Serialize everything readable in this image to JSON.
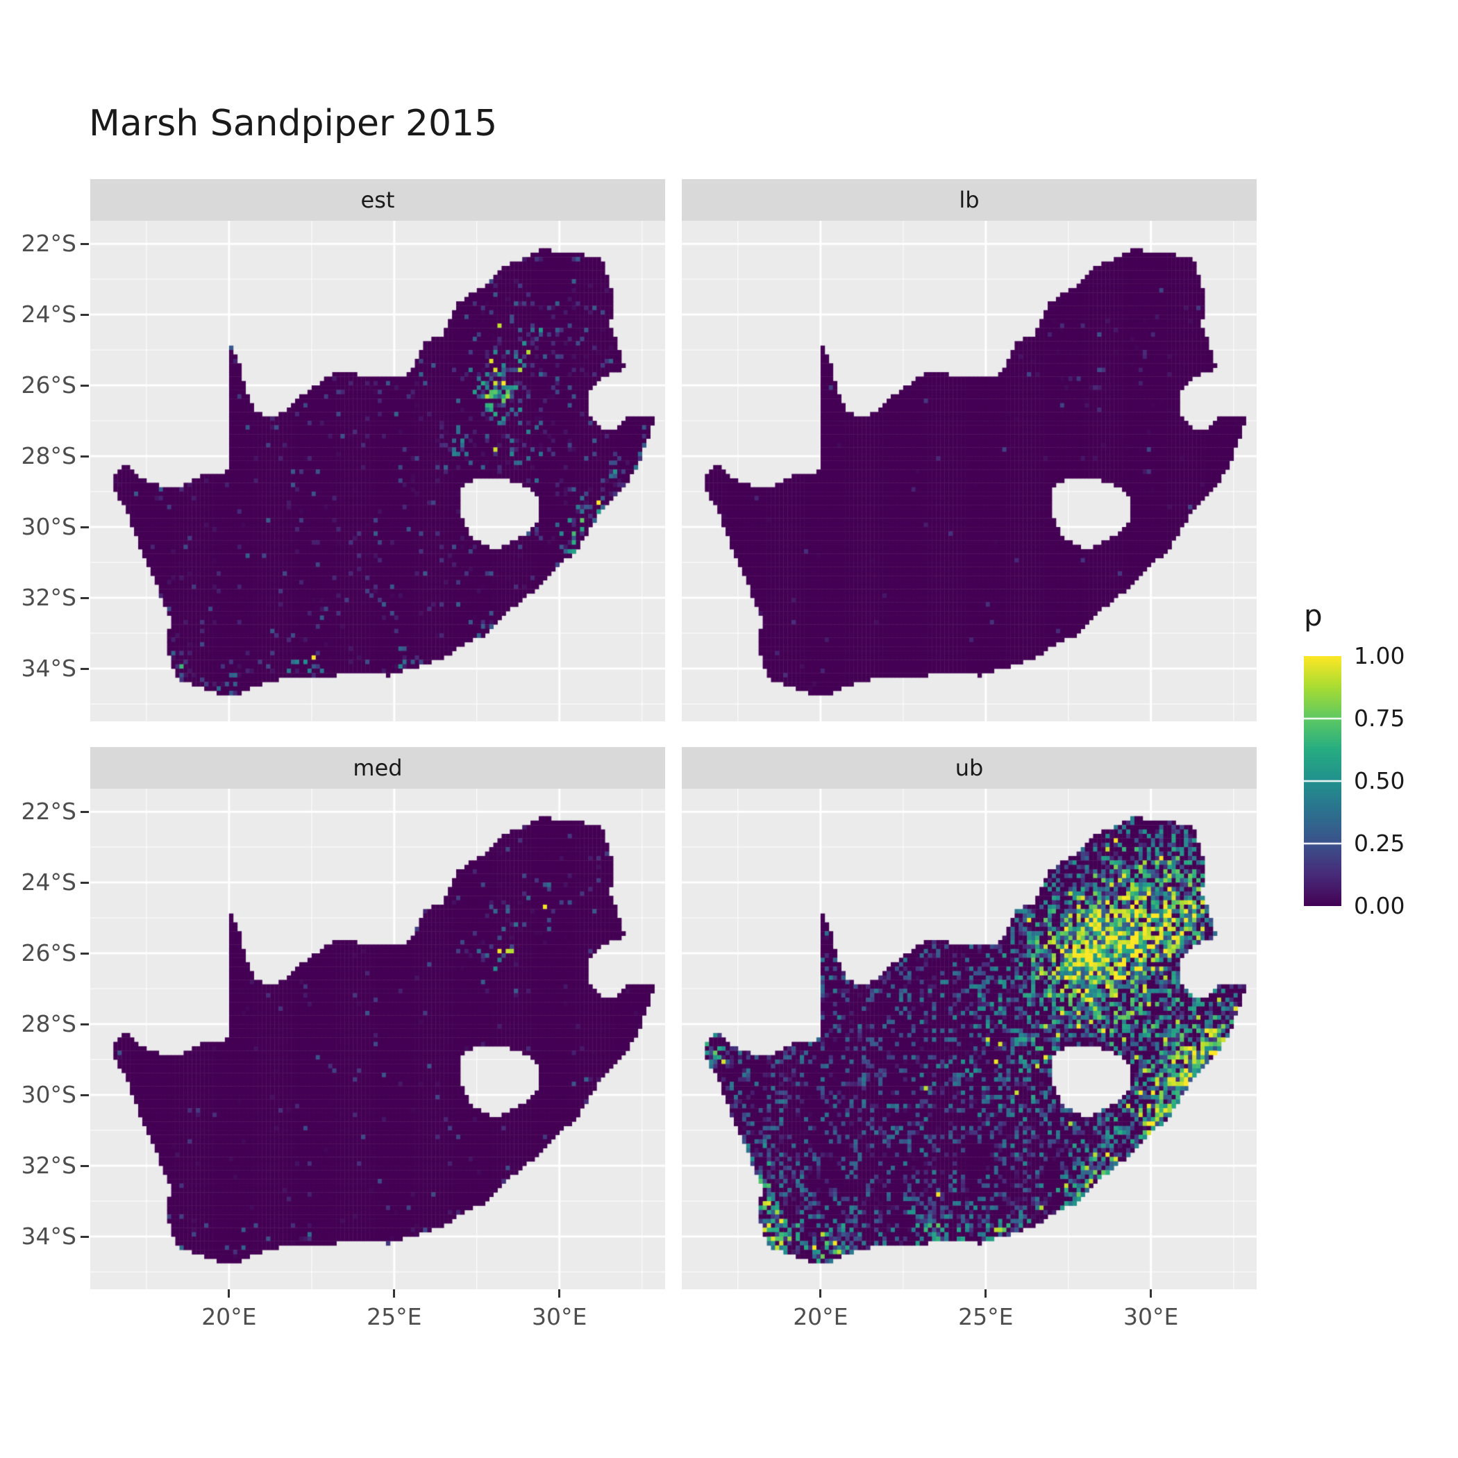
{
  "title": "Marsh Sandpiper 2015",
  "legend": {
    "title": "p",
    "labels": [
      "1.00",
      "0.75",
      "0.50",
      "0.25",
      "0.00"
    ],
    "breaks": [
      1,
      0.75,
      0.5,
      0.25,
      0
    ]
  },
  "axes": {
    "x_ticks": [
      "20°E",
      "25°E",
      "30°E"
    ],
    "y_ticks": [
      "22°S",
      "24°S",
      "26°S",
      "28°S",
      "30°S",
      "32°S",
      "34°S"
    ]
  },
  "chart_data": {
    "type": "heatmap",
    "title": "Marsh Sandpiper 2015",
    "description": "Four faceted raster maps (est, lb, med, ub) of South Africa showing per-grid-cell probability p on a viridis colour scale from 0.00 (dark purple) to 1.00 (yellow). Facet est: sparse teal/green speckles with a bright cluster around Gauteng (28E, 26S) and along the south and east coasts. Facet lb: almost entirely near zero with a few isolated bright dots near Gauteng. Facet med: mostly near zero with a small cluster near Gauteng and sparse coastal speckles. Facet ub: heavy high values - large yellow/green mass over Gauteng and the north-east, widespread teal over the eastern half and yellow along the southern and western coasts. Lesotho and Eswatini are excluded (background shows through).",
    "legend_title": "p",
    "color_scale": {
      "name": "viridis",
      "domain": [
        0,
        1
      ],
      "breaks": [
        0,
        0.25,
        0.5,
        0.75,
        1
      ],
      "stops": [
        [
          0,
          68,
          1,
          84
        ],
        [
          0.13,
          71,
          44,
          122
        ],
        [
          0.25,
          59,
          81,
          139
        ],
        [
          0.38,
          44,
          113,
          142
        ],
        [
          0.5,
          33,
          144,
          141
        ],
        [
          0.63,
          39,
          173,
          129
        ],
        [
          0.75,
          92,
          200,
          99
        ],
        [
          0.88,
          170,
          220,
          50
        ],
        [
          1,
          253,
          231,
          37
        ]
      ]
    },
    "projection": {
      "lon_range": [
        15.8,
        33.2
      ],
      "lat_range": [
        -35.49,
        -21.35
      ]
    },
    "x_breaks": [
      20,
      25,
      30
    ],
    "x_minor": [
      17.5,
      22.5,
      27.5,
      32.5
    ],
    "y_breaks": [
      -22,
      -24,
      -26,
      -28,
      -30,
      -32,
      -34
    ],
    "y_minor": [
      -23,
      -25,
      -27,
      -29,
      -31,
      -33,
      -35
    ],
    "cell_deg": 0.125,
    "facets": [
      {
        "label": "est",
        "seed": 101,
        "base": 0.055,
        "v0": 0.3,
        "v1": 1.1,
        "gamma": 1.7,
        "boost": 0.35,
        "yellow": 0.16,
        "hotspots": [
          [
            28.1,
            -26.05,
            0.5,
            0.6
          ],
          [
            29.4,
            -24.7,
            0.9,
            0.22
          ],
          [
            28.6,
            -27.6,
            0.8,
            0.16
          ],
          [
            30.9,
            -29.85,
            0.4,
            0.38
          ],
          [
            31.95,
            -28.6,
            0.4,
            0.3
          ],
          [
            18.55,
            -34.05,
            0.35,
            0.4
          ],
          [
            20.4,
            -34.6,
            0.5,
            0.33
          ],
          [
            22.3,
            -34.15,
            0.4,
            0.28
          ],
          [
            25.6,
            -33.95,
            0.35,
            0.33
          ],
          [
            27.9,
            -33.0,
            0.3,
            0.28
          ],
          [
            26.75,
            -28.05,
            0.5,
            0.2
          ],
          [
            24.9,
            -25.85,
            0.5,
            0.16
          ],
          [
            30.3,
            -30.55,
            0.35,
            0.3
          ],
          [
            28.9,
            -30.0,
            0.25,
            0.25
          ]
        ]
      },
      {
        "label": "lb",
        "seed": 202,
        "base": 0.012,
        "v0": 0.22,
        "v1": 1.0,
        "gamma": 2.3,
        "boost": 0.1,
        "yellow": 0.3,
        "hotspots": [
          [
            28.1,
            -26.0,
            0.7,
            0.1
          ],
          [
            29.6,
            -24.9,
            0.8,
            0.05
          ],
          [
            31.0,
            -29.9,
            0.3,
            0.05
          ],
          [
            18.6,
            -34.05,
            0.3,
            0.04
          ]
        ]
      },
      {
        "label": "med",
        "seed": 303,
        "base": 0.022,
        "v0": 0.28,
        "v1": 1.1,
        "gamma": 2.0,
        "boost": 0.25,
        "yellow": 0.18,
        "hotspots": [
          [
            28.1,
            -26.05,
            0.5,
            0.35
          ],
          [
            29.4,
            -24.7,
            0.9,
            0.1
          ],
          [
            30.9,
            -29.85,
            0.3,
            0.14
          ],
          [
            18.55,
            -34.05,
            0.3,
            0.18
          ],
          [
            20.4,
            -34.6,
            0.4,
            0.16
          ],
          [
            25.6,
            -33.95,
            0.3,
            0.14
          ],
          [
            27.9,
            -33.0,
            0.25,
            0.12
          ],
          [
            22.3,
            -34.15,
            0.3,
            0.12
          ]
        ]
      },
      {
        "label": "ub",
        "seed": 404,
        "base": 0.26,
        "v0": 0.42,
        "v1": 0.85,
        "gamma": 1.15,
        "boost": 0.55,
        "yellow": 0.2,
        "hotspots": [
          [
            28.2,
            -26.0,
            1.1,
            0.6
          ],
          [
            29.9,
            -24.3,
            1.2,
            0.35
          ],
          [
            31.0,
            -25.3,
            0.9,
            0.3
          ],
          [
            29.2,
            -27.2,
            2.6,
            0.16
          ],
          [
            30.5,
            -30.0,
            2.2,
            0.12
          ],
          [
            31.2,
            -29.5,
            0.7,
            0.4
          ],
          [
            32.0,
            -28.4,
            0.5,
            0.38
          ],
          [
            30.2,
            -30.8,
            0.5,
            0.42
          ],
          [
            28.6,
            -32.2,
            0.6,
            0.28
          ],
          [
            27.9,
            -33.0,
            0.5,
            0.38
          ],
          [
            25.6,
            -33.95,
            0.5,
            0.42
          ],
          [
            23.5,
            -34.1,
            0.7,
            0.33
          ],
          [
            20.5,
            -34.55,
            0.6,
            0.48
          ],
          [
            18.6,
            -34.0,
            0.5,
            0.55
          ],
          [
            18.2,
            -32.9,
            0.5,
            0.32
          ],
          [
            17.9,
            -31.9,
            0.4,
            0.28
          ],
          [
            16.7,
            -28.8,
            0.35,
            0.3
          ],
          [
            26.0,
            -28.6,
            1.3,
            0.12
          ]
        ]
      }
    ],
    "south_africa_outline": [
      [
        16.45,
        -28.6
      ],
      [
        16.95,
        -28.2
      ],
      [
        17.35,
        -28.6
      ],
      [
        17.95,
        -28.85
      ],
      [
        18.6,
        -28.85
      ],
      [
        19.1,
        -28.55
      ],
      [
        19.7,
        -28.5
      ],
      [
        19.99,
        -28.4
      ],
      [
        19.99,
        -24.77
      ],
      [
        20.3,
        -25.35
      ],
      [
        20.45,
        -25.95
      ],
      [
        20.65,
        -26.45
      ],
      [
        20.85,
        -26.8
      ],
      [
        21.5,
        -26.85
      ],
      [
        22.05,
        -26.4
      ],
      [
        22.65,
        -26.0
      ],
      [
        23.25,
        -25.6
      ],
      [
        23.95,
        -25.7
      ],
      [
        24.7,
        -25.8
      ],
      [
        25.35,
        -25.75
      ],
      [
        25.6,
        -25.5
      ],
      [
        25.9,
        -24.75
      ],
      [
        26.45,
        -24.6
      ],
      [
        26.9,
        -23.7
      ],
      [
        27.25,
        -23.45
      ],
      [
        27.7,
        -23.2
      ],
      [
        28.25,
        -22.7
      ],
      [
        29.0,
        -22.35
      ],
      [
        29.45,
        -22.15
      ],
      [
        30.1,
        -22.25
      ],
      [
        30.7,
        -22.3
      ],
      [
        31.3,
        -22.4
      ],
      [
        31.6,
        -23.4
      ],
      [
        31.55,
        -24.3
      ],
      [
        31.98,
        -25.5
      ],
      [
        31.2,
        -25.8
      ],
      [
        30.8,
        -26.35
      ],
      [
        30.9,
        -26.85
      ],
      [
        31.2,
        -27.2
      ],
      [
        31.65,
        -27.3
      ],
      [
        31.95,
        -27.05
      ],
      [
        32.15,
        -26.85
      ],
      [
        32.89,
        -26.85
      ],
      [
        32.6,
        -27.7
      ],
      [
        32.35,
        -28.35
      ],
      [
        31.95,
        -28.85
      ],
      [
        31.3,
        -29.45
      ],
      [
        31.05,
        -29.9
      ],
      [
        30.6,
        -30.55
      ],
      [
        30.0,
        -31.1
      ],
      [
        29.35,
        -31.7
      ],
      [
        28.7,
        -32.2
      ],
      [
        28.1,
        -32.65
      ],
      [
        27.85,
        -33.0
      ],
      [
        27.1,
        -33.3
      ],
      [
        26.4,
        -33.75
      ],
      [
        25.65,
        -33.95
      ],
      [
        24.85,
        -34.2
      ],
      [
        23.6,
        -34.1
      ],
      [
        22.95,
        -34.25
      ],
      [
        22.15,
        -34.2
      ],
      [
        21.1,
        -34.4
      ],
      [
        20.0,
        -34.83
      ],
      [
        19.3,
        -34.6
      ],
      [
        18.85,
        -34.4
      ],
      [
        18.45,
        -34.3
      ],
      [
        18.3,
        -33.95
      ],
      [
        18.05,
        -33.25
      ],
      [
        18.25,
        -32.7
      ],
      [
        18.0,
        -32.1
      ],
      [
        17.6,
        -31.2
      ],
      [
        17.25,
        -30.45
      ],
      [
        16.9,
        -29.5
      ],
      [
        16.5,
        -28.95
      ]
    ],
    "lesotho_hole": [
      [
        27.02,
        -28.9
      ],
      [
        27.55,
        -28.6
      ],
      [
        28.4,
        -28.62
      ],
      [
        29.1,
        -28.92
      ],
      [
        29.45,
        -29.35
      ],
      [
        29.28,
        -29.95
      ],
      [
        28.85,
        -30.25
      ],
      [
        28.1,
        -30.65
      ],
      [
        27.4,
        -30.35
      ],
      [
        27.0,
        -29.65
      ]
    ]
  }
}
